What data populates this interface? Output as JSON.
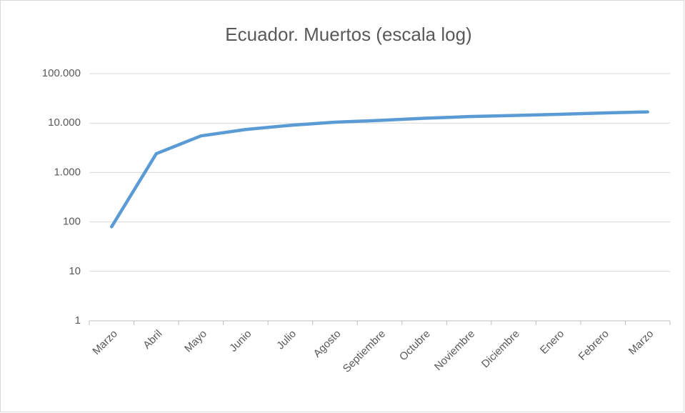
{
  "chart_data": {
    "type": "line",
    "title": "Ecuador. Muertos (escala log)",
    "categories": [
      "Marzo",
      "Abril",
      "Mayo",
      "Junio",
      "Julio",
      "Agosto",
      "Septiembre",
      "Octubre",
      "Noviembre",
      "Diciembre",
      "Enero",
      "Febrero",
      "Marzo"
    ],
    "series": [
      {
        "name": "Muertos",
        "color": "#5b9bd5",
        "values": [
          80,
          2400,
          5500,
          7400,
          9000,
          10400,
          11300,
          12500,
          13500,
          14200,
          15000,
          16000,
          16800
        ]
      }
    ],
    "log": true,
    "grid": true,
    "ylim": [
      1,
      100000
    ],
    "yticks": [
      1,
      10,
      100,
      {
        "value": 1000,
        "label": "1.000"
      },
      {
        "value": 10000,
        "label": "10.000"
      },
      {
        "value": 100000,
        "label": "100.000"
      }
    ]
  }
}
